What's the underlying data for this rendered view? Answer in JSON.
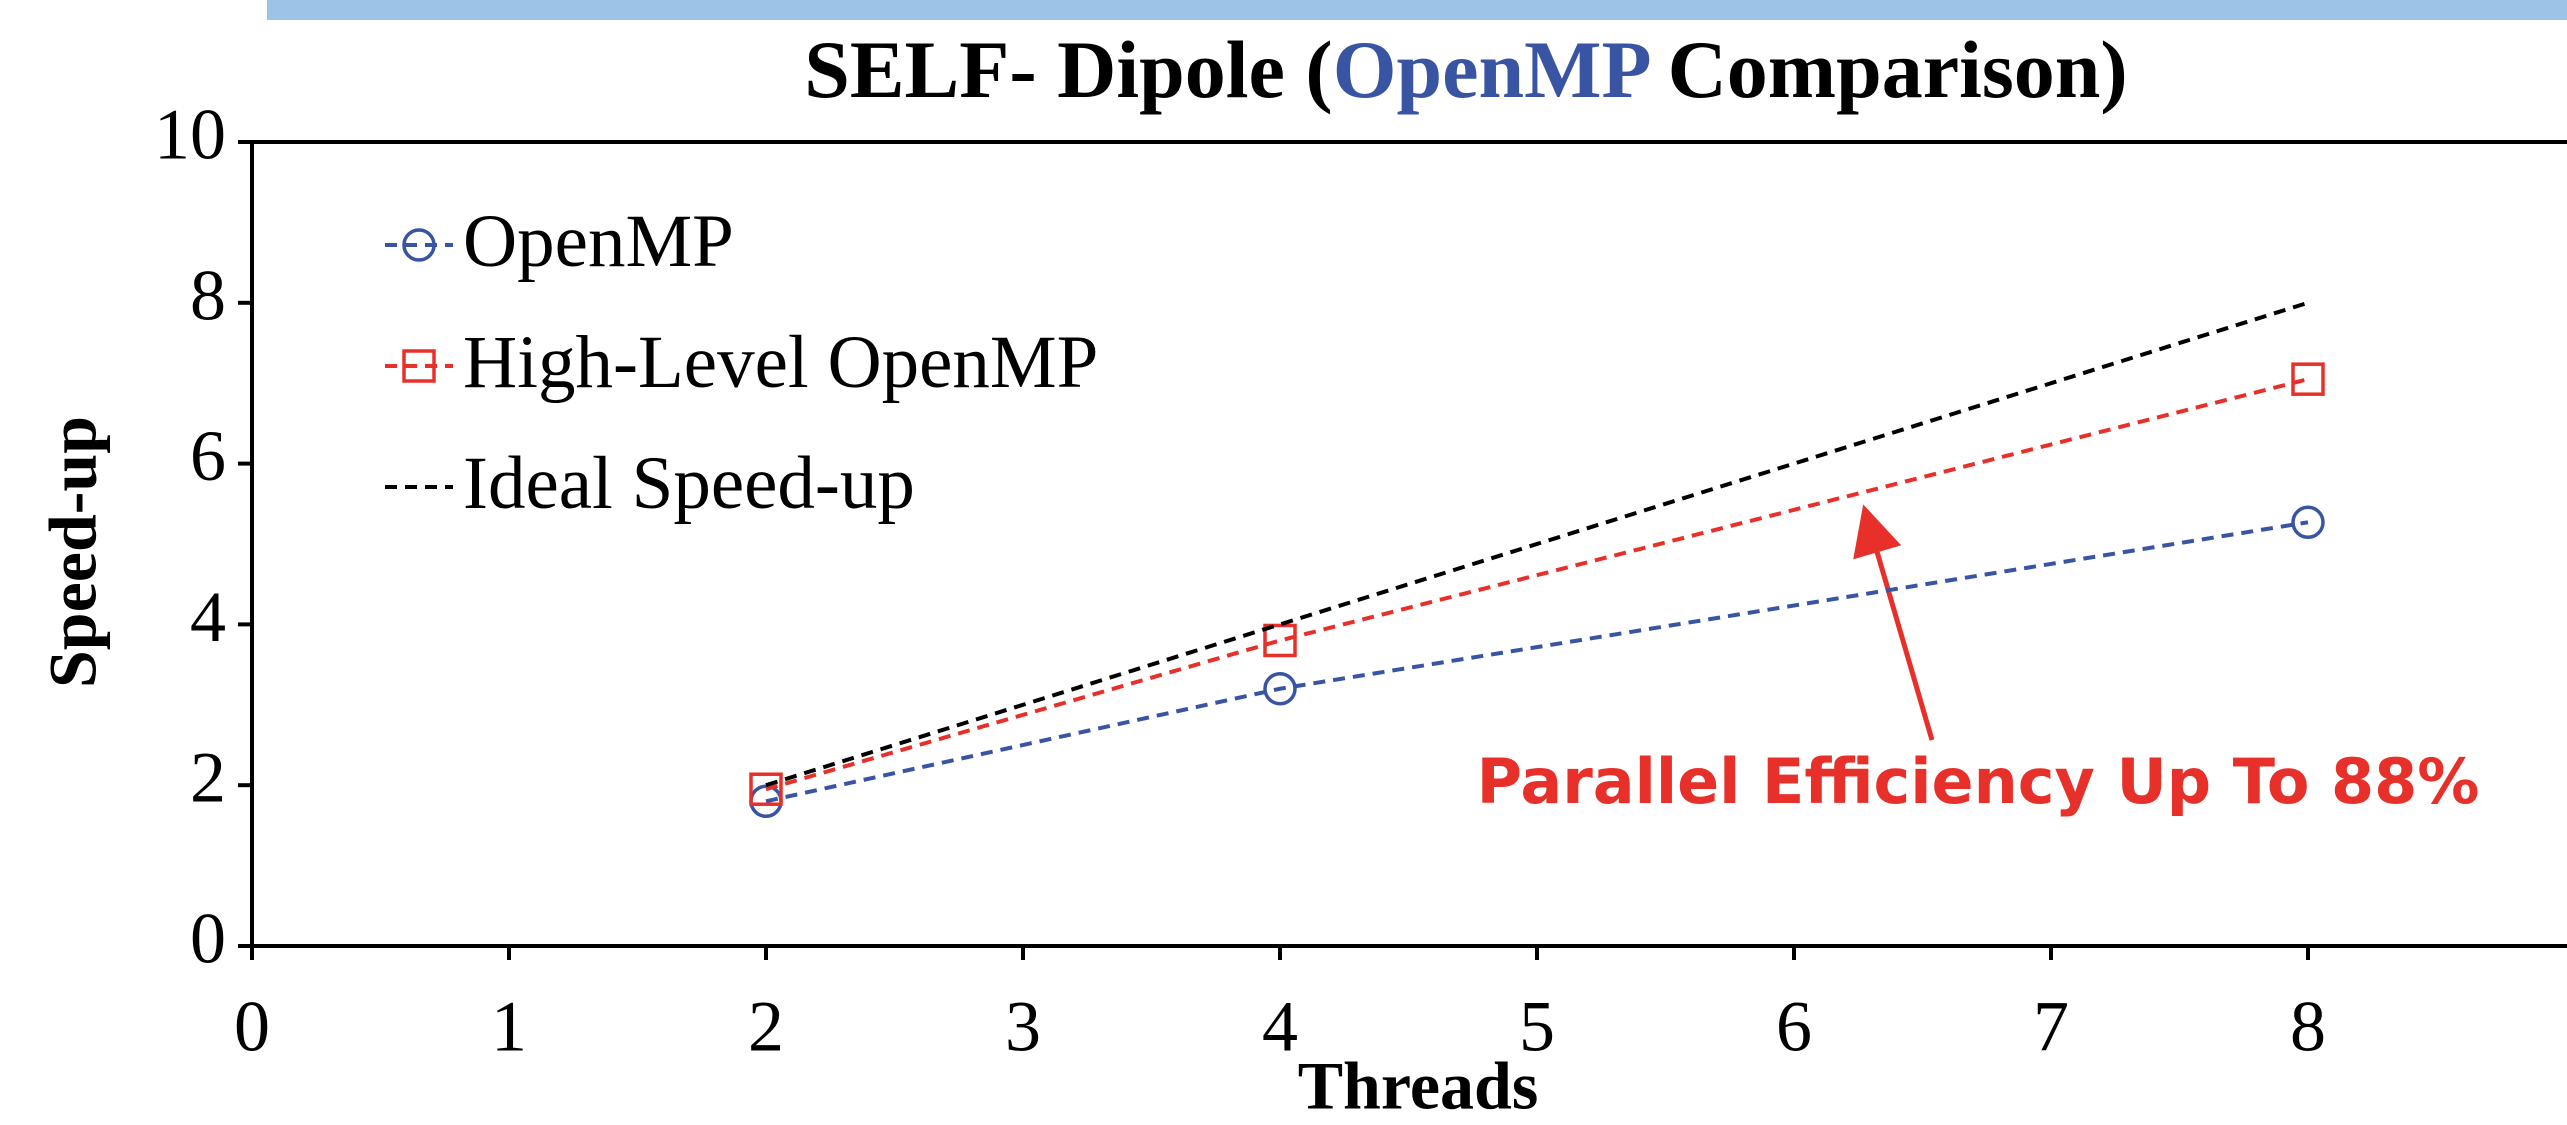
{
  "chart_data": {
    "type": "line",
    "title_parts": [
      "SELF- Dipole (",
      "OpenMP",
      " Comparison)"
    ],
    "x_label": "Threads",
    "y_label": "Speed-up",
    "annotation": "Parallel Efficiency Up To 88%",
    "x": [
      2,
      4,
      8
    ],
    "series": [
      {
        "name": "OpenMP",
        "color": "#3a54a4",
        "marker": "circle",
        "values": [
          1.8,
          3.2,
          5.27
        ]
      },
      {
        "name": "High-Level OpenMP",
        "color": "#e8302a",
        "marker": "square",
        "values": [
          1.95,
          3.8,
          7.05
        ]
      },
      {
        "name": "Ideal Speed-up",
        "color": "#000000",
        "marker": "none",
        "values": [
          2,
          4,
          8
        ]
      }
    ],
    "xlim": [
      0,
      9
    ],
    "xticks": [
      0,
      1,
      2,
      3,
      4,
      5,
      6,
      7,
      8
    ],
    "ylim": [
      0,
      10
    ],
    "yticks": [
      0,
      2,
      4,
      6,
      8,
      10
    ],
    "legend": "upper left"
  }
}
